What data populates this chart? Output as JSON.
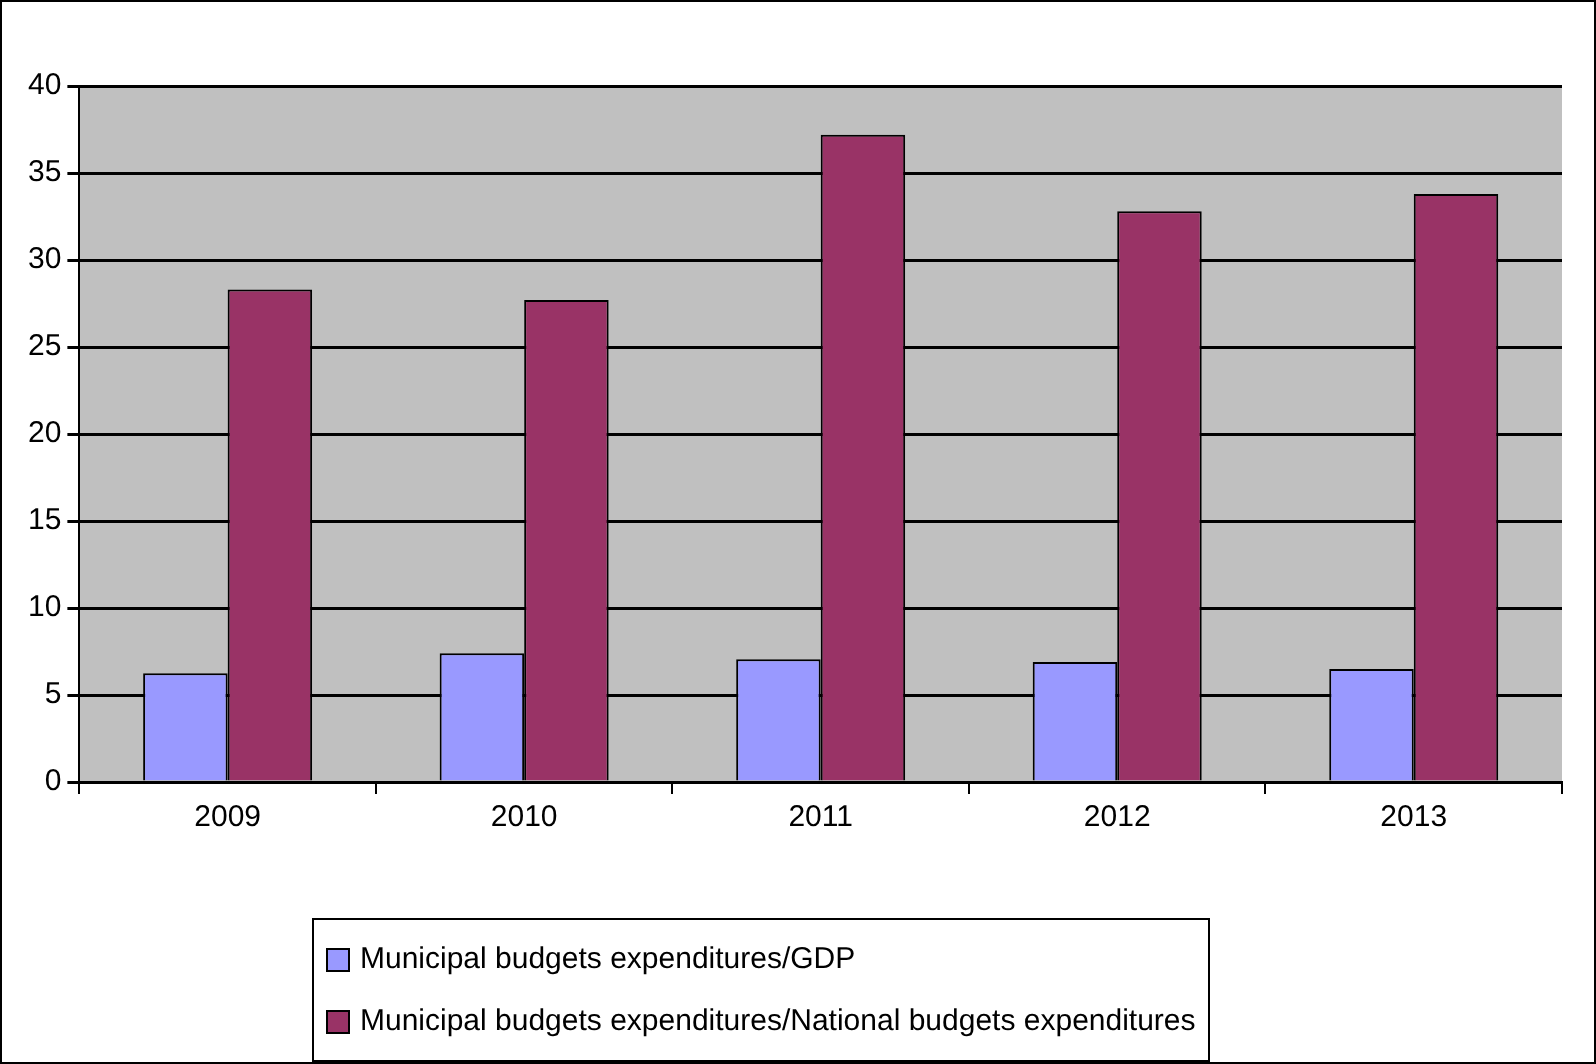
{
  "chart_data": {
    "type": "bar",
    "categories": [
      "2009",
      "2010",
      "2011",
      "2012",
      "2013"
    ],
    "series": [
      {
        "name": "Municipal budgets expenditures/GDP",
        "color": "#9999ff",
        "values": [
          6.25,
          7.4,
          7.05,
          6.9,
          6.5
        ]
      },
      {
        "name": "Municipal budgets expenditures/National budgets expenditures",
        "color": "#993366",
        "values": [
          28.3,
          27.7,
          37.2,
          32.8,
          33.8
        ]
      }
    ],
    "ylim": [
      0,
      40
    ],
    "yticks": [
      0,
      5,
      10,
      15,
      20,
      25,
      30,
      35,
      40
    ],
    "grid": "y",
    "legend": "bottom"
  }
}
